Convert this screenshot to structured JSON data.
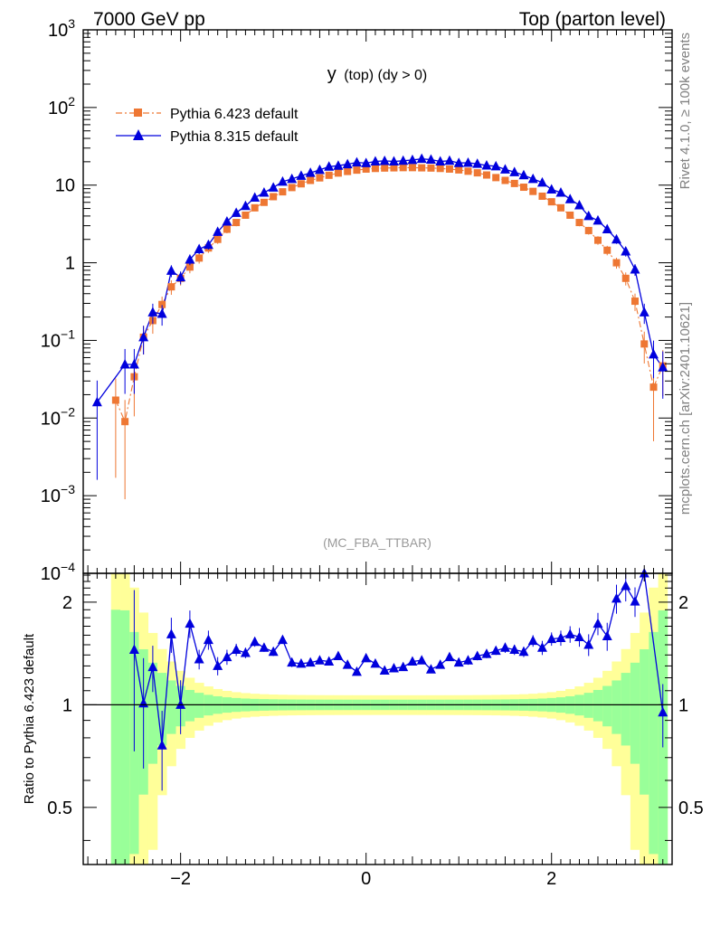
{
  "header": {
    "left_label": "7000 GeV pp",
    "right_label": "Top (parton level)"
  },
  "side": {
    "rivet_label": "Rivet 4.1.0, ≥ 100k events",
    "source_label": "mcplots.cern.ch [arXiv:2401.10621]"
  },
  "chart_data": {
    "type": "line",
    "title_main": "y",
    "title_sub": "(top) (dy > 0)",
    "watermark": "(MC_FBA_TTBAR)",
    "xlabel": "",
    "ylabel_ratio": "Ratio to Pythia 6.423 default",
    "xlim": [
      -3.05,
      3.3
    ],
    "ylim": [
      0.0001,
      1000
    ],
    "ratio_ylim": [
      0.34,
      2.43
    ],
    "y_scale": "log",
    "x_ticks": [
      {
        "v": -2,
        "label": "−2"
      },
      {
        "v": 0,
        "label": "0"
      },
      {
        "v": 2,
        "label": "2"
      }
    ],
    "y_ticks": [
      {
        "v": 1000,
        "base": "10",
        "exp": "3"
      },
      {
        "v": 100,
        "base": "10",
        "exp": "2"
      },
      {
        "v": 10,
        "base": "10",
        "exp": ""
      },
      {
        "v": 1,
        "base": "1",
        "exp": ""
      },
      {
        "v": 0.1,
        "base": "10",
        "exp": "−1"
      },
      {
        "v": 0.01,
        "base": "10",
        "exp": "−2"
      },
      {
        "v": 0.001,
        "base": "10",
        "exp": "−3"
      },
      {
        "v": 0.0001,
        "base": "10",
        "exp": "−4"
      }
    ],
    "ratio_ticks": [
      {
        "v": 0.5,
        "label": "0.5"
      },
      {
        "v": 1,
        "label": "1"
      },
      {
        "v": 2,
        "label": "2"
      }
    ],
    "legend_position": "top-left",
    "band_colors": {
      "inner": "#99ff99",
      "outer": "#ffff99"
    },
    "series": [
      {
        "name": "Pythia 6.423 default",
        "color": "#ee7733",
        "marker": "square",
        "line_style": "dash-dot",
        "x": [
          -2.7,
          -2.6,
          -2.5,
          -2.4,
          -2.3,
          -2.2,
          -2.1,
          -2.0,
          -1.9,
          -1.8,
          -1.7,
          -1.6,
          -1.5,
          -1.4,
          -1.3,
          -1.2,
          -1.1,
          -1.0,
          -0.9,
          -0.8,
          -0.7,
          -0.6,
          -0.5,
          -0.4,
          -0.3,
          -0.2,
          -0.1,
          0.0,
          0.1,
          0.2,
          0.3,
          0.4,
          0.5,
          0.6,
          0.7,
          0.8,
          0.9,
          1.0,
          1.1,
          1.2,
          1.3,
          1.4,
          1.5,
          1.6,
          1.7,
          1.8,
          1.9,
          2.0,
          2.1,
          2.2,
          2.3,
          2.4,
          2.5,
          2.6,
          2.7,
          2.8,
          2.9,
          3.0,
          3.1,
          3.2
        ],
        "values": [
          0.017,
          0.009,
          0.034,
          0.11,
          0.18,
          0.29,
          0.49,
          0.63,
          0.88,
          1.15,
          1.55,
          2.0,
          2.7,
          3.3,
          4.1,
          5.1,
          6.0,
          7.1,
          8.2,
          9.3,
          10.4,
          11.5,
          12.4,
          13.4,
          14.3,
          15.0,
          15.6,
          16.1,
          16.4,
          16.6,
          16.7,
          16.8,
          16.8,
          16.7,
          16.6,
          16.4,
          16.1,
          15.7,
          15.1,
          14.4,
          13.5,
          12.5,
          11.5,
          10.5,
          9.4,
          8.3,
          7.2,
          6.1,
          5.1,
          4.1,
          3.3,
          2.6,
          1.95,
          1.45,
          1.0,
          0.63,
          0.32,
          0.09,
          0.025,
          0.047
        ]
      },
      {
        "name": "Pythia 8.315 default",
        "color": "#0000dd",
        "marker": "triangle",
        "line_style": "solid",
        "x": [
          -2.9,
          -2.6,
          -2.5,
          -2.4,
          -2.3,
          -2.2,
          -2.1,
          -2.0,
          -1.9,
          -1.8,
          -1.7,
          -1.6,
          -1.5,
          -1.4,
          -1.3,
          -1.2,
          -1.1,
          -1.0,
          -0.9,
          -0.8,
          -0.7,
          -0.6,
          -0.5,
          -0.4,
          -0.3,
          -0.2,
          -0.1,
          0.0,
          0.1,
          0.2,
          0.3,
          0.4,
          0.5,
          0.6,
          0.7,
          0.8,
          0.9,
          1.0,
          1.1,
          1.2,
          1.3,
          1.4,
          1.5,
          1.6,
          1.7,
          1.8,
          1.9,
          2.0,
          2.1,
          2.2,
          2.3,
          2.4,
          2.5,
          2.6,
          2.7,
          2.8,
          2.9,
          3.0,
          3.1,
          3.2
        ],
        "values": [
          0.016,
          0.049,
          0.049,
          0.11,
          0.23,
          0.22,
          0.79,
          0.65,
          1.1,
          1.5,
          1.7,
          2.5,
          3.4,
          4.4,
          5.4,
          6.9,
          8.0,
          9.3,
          11.1,
          12.0,
          13.2,
          14.4,
          15.7,
          17.3,
          17.8,
          18.6,
          19.6,
          19.2,
          20.2,
          20.5,
          20.2,
          20.6,
          21.1,
          21.8,
          21.3,
          20.2,
          20.6,
          19.3,
          19.4,
          18.8,
          17.9,
          17.5,
          15.9,
          14.7,
          13.4,
          12.0,
          10.8,
          8.8,
          8.0,
          6.6,
          5.5,
          4.0,
          3.5,
          2.7,
          2.0,
          1.4,
          0.82,
          0.23,
          0.066,
          0.045
        ]
      }
    ],
    "ratio_series": {
      "name": "Pythia 8.315 default / Pythia 6.423 default",
      "x": [
        -2.5,
        -2.4,
        -2.3,
        -2.2,
        -2.1,
        -2.0,
        -1.9,
        -1.8,
        -1.7,
        -1.6,
        -1.5,
        -1.4,
        -1.3,
        -1.2,
        -1.1,
        -1.0,
        -0.9,
        -0.8,
        -0.7,
        -0.6,
        -0.5,
        -0.4,
        -0.3,
        -0.2,
        -0.1,
        0.0,
        0.1,
        0.2,
        0.3,
        0.4,
        0.5,
        0.6,
        0.7,
        0.8,
        0.9,
        1.0,
        1.1,
        1.2,
        1.3,
        1.4,
        1.5,
        1.6,
        1.7,
        1.8,
        1.9,
        2.0,
        2.1,
        2.2,
        2.3,
        2.4,
        2.5,
        2.6,
        2.7,
        2.8,
        2.9,
        3.0,
        3.2
      ],
      "values": [
        1.45,
        1.01,
        1.29,
        0.76,
        1.61,
        1.0,
        1.73,
        1.36,
        1.55,
        1.3,
        1.38,
        1.45,
        1.42,
        1.53,
        1.47,
        1.43,
        1.55,
        1.33,
        1.32,
        1.33,
        1.35,
        1.34,
        1.39,
        1.31,
        1.25,
        1.37,
        1.32,
        1.26,
        1.28,
        1.29,
        1.34,
        1.35,
        1.27,
        1.31,
        1.38,
        1.33,
        1.35,
        1.39,
        1.41,
        1.44,
        1.47,
        1.45,
        1.43,
        1.54,
        1.47,
        1.56,
        1.57,
        1.61,
        1.58,
        1.5,
        1.73,
        1.59,
        2.05,
        2.23,
        2.01,
        2.5,
        0.95
      ],
      "errors": [
        0.72,
        0.36,
        0.2,
        0.2,
        0.19,
        0.18,
        0.16,
        0.09,
        0.1,
        0.08,
        0.07,
        0.06,
        0.05,
        0.05,
        0.04,
        0.04,
        0.04,
        0.04,
        0.03,
        0.03,
        0.03,
        0.03,
        0.03,
        0.03,
        0.03,
        0.03,
        0.03,
        0.03,
        0.03,
        0.03,
        0.03,
        0.03,
        0.03,
        0.03,
        0.03,
        0.03,
        0.04,
        0.04,
        0.04,
        0.04,
        0.05,
        0.05,
        0.05,
        0.06,
        0.07,
        0.07,
        0.08,
        0.09,
        0.1,
        0.11,
        0.13,
        0.15,
        0.2,
        0.22,
        0.2,
        0.2,
        0.2
      ]
    }
  }
}
